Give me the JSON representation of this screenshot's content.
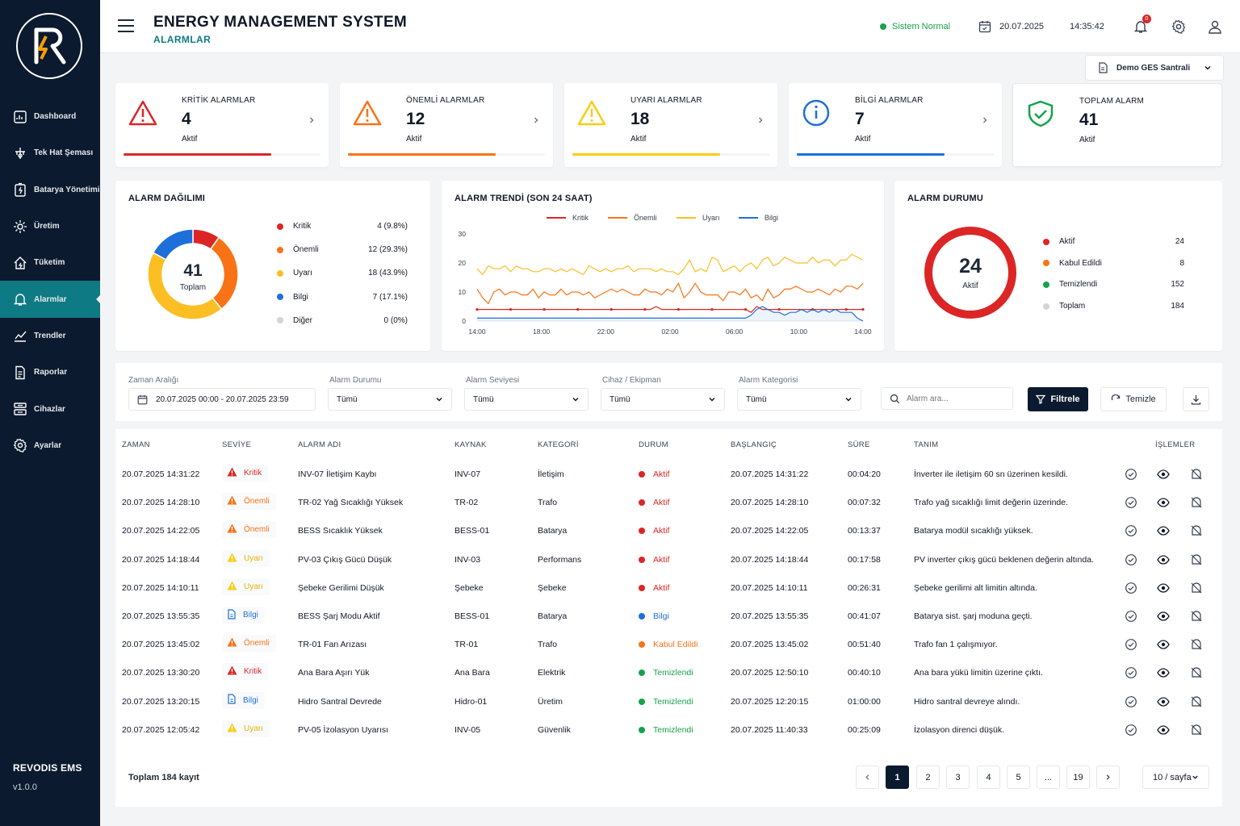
{
  "sidebar": {
    "brand": "REVODIS EMS",
    "version": "v1.0.0",
    "items": [
      {
        "label": "Dashboard",
        "icon": "dashboard-icon"
      },
      {
        "label": "Tek Hat Şeması",
        "icon": "single-line-icon"
      },
      {
        "label": "Batarya Yönetimi",
        "icon": "battery-icon"
      },
      {
        "label": "Üretim",
        "icon": "production-icon"
      },
      {
        "label": "Tüketim",
        "icon": "consumption-icon"
      },
      {
        "label": "Alarmlar",
        "icon": "bell-icon",
        "active": true
      },
      {
        "label": "Trendler",
        "icon": "trend-icon"
      },
      {
        "label": "Raporlar",
        "icon": "report-icon"
      },
      {
        "label": "Cihazlar",
        "icon": "devices-icon"
      },
      {
        "label": "Ayarlar",
        "icon": "settings-icon"
      }
    ]
  },
  "header": {
    "title": "ENERGY MANAGEMENT SYSTEM",
    "subtitle": "ALARMLAR",
    "status": "Sistem Normal",
    "date": "20.07.2025",
    "time": "14:35:42",
    "notif_count": "0",
    "plant": "Demo GES Santrali"
  },
  "kpis": [
    {
      "label": "KRİTİK ALARMLAR",
      "value": "4",
      "sub": "Aktif",
      "color": "#dc2626",
      "fill": 0.75
    },
    {
      "label": "ÖNEMLİ ALARMLAR",
      "value": "12",
      "sub": "Aktif",
      "color": "#f97316",
      "fill": 0.75
    },
    {
      "label": "UYARI ALARMLAR",
      "value": "18",
      "sub": "Aktif",
      "color": "#facc15",
      "fill": 0.75
    },
    {
      "label": "BİLGİ ALARMLAR",
      "value": "7",
      "sub": "Aktif",
      "color": "#1e6fd9",
      "fill": 0.75
    },
    {
      "label": "TOPLAM ALARM",
      "value": "41",
      "sub": "Aktif",
      "color": "#16a34a"
    }
  ],
  "distribution": {
    "title": "ALARM DAĞILIMI",
    "total": "41",
    "total_label": "Toplam",
    "items": [
      {
        "name": "Kritik",
        "text": "4 (9.8%)",
        "value": 4,
        "color": "#dc2626"
      },
      {
        "name": "Önemli",
        "text": "12 (29.3%)",
        "value": 12,
        "color": "#f97316"
      },
      {
        "name": "Uyarı",
        "text": "18 (43.9%)",
        "value": 18,
        "color": "#fbbf24"
      },
      {
        "name": "Bilgi",
        "text": "7 (17.1%)",
        "value": 7,
        "color": "#1e6fd9"
      },
      {
        "name": "Diğer",
        "text": "0 (0%)",
        "value": 0,
        "color": "#d1d5db"
      }
    ]
  },
  "chart_data": {
    "type": "line",
    "title": "ALARM TRENDİ (SON 24 SAAT)",
    "x_ticks": [
      "14:00",
      "18:00",
      "22:00",
      "02:00",
      "06:00",
      "10:00",
      "14:00"
    ],
    "ylim": [
      0,
      30
    ],
    "y_ticks": [
      0,
      10,
      20,
      30
    ],
    "legend": "top",
    "series": [
      {
        "name": "Kritik",
        "color": "#dc2626",
        "values": [
          4,
          4,
          4,
          4,
          4,
          4,
          4,
          4,
          4,
          4,
          4,
          4,
          4,
          4,
          4,
          4,
          4,
          4,
          4,
          4,
          4,
          4,
          4,
          4,
          4,
          4,
          4,
          4,
          4,
          4,
          4,
          4,
          5,
          4,
          4,
          4,
          4,
          4,
          4,
          4,
          4,
          4,
          4,
          4,
          4,
          4,
          4,
          4,
          4,
          3,
          5,
          4,
          4,
          4,
          4,
          4,
          4,
          4,
          4,
          4,
          4,
          4,
          4,
          4,
          4,
          4,
          4,
          4,
          4,
          4
        ]
      },
      {
        "name": "Önemli",
        "color": "#f97316",
        "values": [
          11,
          8,
          6,
          10,
          11,
          9,
          10,
          10,
          9,
          9,
          11,
          8,
          10,
          9,
          9,
          11,
          9,
          10,
          10,
          9,
          10,
          8,
          9,
          10,
          11,
          10,
          11,
          10,
          9,
          9,
          11,
          10,
          10,
          9,
          11,
          10,
          13,
          8,
          10,
          13,
          10,
          9,
          9,
          9,
          7,
          10,
          10,
          9,
          11,
          8,
          9,
          7,
          11,
          8,
          9,
          11,
          11,
          12,
          11,
          10,
          10,
          11,
          10,
          9,
          11,
          10,
          12,
          12,
          11,
          13
        ]
      },
      {
        "name": "Uyarı",
        "color": "#fbbf24",
        "values": [
          18,
          16,
          19,
          18,
          18,
          19,
          17,
          19,
          18,
          18,
          17,
          17,
          18,
          18,
          17,
          18,
          17,
          18,
          17,
          16,
          19,
          18,
          17,
          18,
          17,
          18,
          18,
          19,
          17,
          18,
          18,
          18,
          17,
          18,
          17,
          17,
          16,
          18,
          21,
          17,
          18,
          17,
          22,
          21,
          17,
          18,
          19,
          17,
          19,
          20,
          18,
          21,
          22,
          19,
          20,
          22,
          21,
          20,
          20,
          20,
          22,
          20,
          21,
          21,
          19,
          21,
          21,
          23,
          22,
          21
        ]
      },
      {
        "name": "Bilgi",
        "color": "#1e6fd9",
        "values": [
          1,
          1,
          1,
          1,
          1,
          1,
          1,
          1,
          1,
          1,
          1,
          1,
          1,
          1,
          1,
          1,
          1,
          1,
          1,
          1,
          1,
          1,
          1,
          1,
          1,
          1,
          1,
          1,
          1,
          1,
          1,
          1,
          1,
          1,
          1,
          1,
          1,
          1,
          1,
          1,
          1,
          1,
          1,
          1,
          1,
          1,
          1,
          1,
          1,
          2,
          4,
          5,
          4,
          3,
          3,
          2,
          3,
          3,
          4,
          3,
          4,
          3,
          4,
          3,
          4,
          3,
          3,
          3,
          1,
          0
        ]
      }
    ]
  },
  "status_panel": {
    "title": "ALARM DURUMU",
    "ring_value": "24",
    "ring_label": "Aktif",
    "items": [
      {
        "name": "Aktif",
        "value": "24",
        "color": "#dc2626"
      },
      {
        "name": "Kabul Edildi",
        "value": "8",
        "color": "#f97316"
      },
      {
        "name": "Temizlendi",
        "value": "152",
        "color": "#16a34a"
      },
      {
        "name": "Toplam",
        "value": "184",
        "color": "#d1d5db"
      }
    ]
  },
  "filters": {
    "range_label": "Zaman Aralığı",
    "range_value": "20.07.2025 00:00 - 20.07.2025 23:59",
    "status_label": "Alarm Durumu",
    "status_value": "Tümü",
    "level_label": "Alarm Seviyesi",
    "level_value": "Tümü",
    "device_label": "Cihaz / Ekipman",
    "device_value": "Tümü",
    "category_label": "Alarm Kategorisi",
    "category_value": "Tümü",
    "search_placeholder": "Alarm ara...",
    "filter_btn": "Filtrele",
    "clear_btn": "Temizle"
  },
  "table": {
    "headers": [
      "ZAMAN",
      "SEVİYE",
      "ALARM ADI",
      "KAYNAK",
      "KATEGORİ",
      "DURUM",
      "BAŞLANGIÇ",
      "SÜRE",
      "TANIM",
      "İŞLEMLER"
    ],
    "rows": [
      {
        "time": "20.07.2025 14:31:22",
        "level": "Kritik",
        "name": "INV-07 İletişim Kaybı",
        "source": "INV-07",
        "category": "İletişim",
        "status": "Aktif",
        "start": "20.07.2025 14:31:22",
        "duration": "00:04:20",
        "desc": "İnverter ile iletişim 60 sn üzerinen kesildi."
      },
      {
        "time": "20.07.2025 14:28:10",
        "level": "Önemli",
        "name": "TR-02 Yağ Sıcaklığı Yüksek",
        "source": "TR-02",
        "category": "Trafo",
        "status": "Aktif",
        "start": "20.07.2025 14:28:10",
        "duration": "00:07:32",
        "desc": "Trafo yağ sıcaklığı limit değerin üzerinde."
      },
      {
        "time": "20.07.2025 14:22:05",
        "level": "Önemli",
        "name": "BESS Sıcaklık Yüksek",
        "source": "BESS-01",
        "category": "Batarya",
        "status": "Aktif",
        "start": "20.07.2025 14:22:05",
        "duration": "00:13:37",
        "desc": "Batarya modül sıcaklığı yüksek."
      },
      {
        "time": "20.07.2025 14:18:44",
        "level": "Uyarı",
        "name": "PV-03 Çıkış Gücü Düşük",
        "source": "INV-03",
        "category": "Performans",
        "status": "Aktif",
        "start": "20.07.2025 14:18:44",
        "duration": "00:17:58",
        "desc": "PV inverter çıkış gücü beklenen değerin altında."
      },
      {
        "time": "20.07.2025 14:10:11",
        "level": "Uyarı",
        "name": "Şebeke Gerilimi Düşük",
        "source": "Şebeke",
        "category": "Şebeke",
        "status": "Aktif",
        "start": "20.07.2025 14:10:11",
        "duration": "00:26:31",
        "desc": "Şebeke gerilimi alt limitin altında."
      },
      {
        "time": "20.07.2025 13:55:35",
        "level": "Bilgi",
        "name": "BESS Şarj Modu Aktif",
        "source": "BESS-01",
        "category": "Batarya",
        "status": "Bilgi",
        "start": "20.07.2025 13:55:35",
        "duration": "00:41:07",
        "desc": "Batarya sist. şarj moduna geçti."
      },
      {
        "time": "20.07.2025 13:45:02",
        "level": "Önemli",
        "name": "TR-01 Fan Arızası",
        "source": "TR-01",
        "category": "Trafo",
        "status": "Kabul Edildi",
        "start": "20.07.2025 13:45:02",
        "duration": "00:51:40",
        "desc": "Trafo fan 1 çalışmıyor."
      },
      {
        "time": "20.07.2025 13:30:20",
        "level": "Kritik",
        "name": "Ana Bara Aşırı Yük",
        "source": "Ana Bara",
        "category": "Elektrik",
        "status": "Temizlendi",
        "start": "20.07.2025 12:50:10",
        "duration": "00:40:10",
        "desc": "Ana bara yükü limitin üzerine çıktı."
      },
      {
        "time": "20.07.2025 13:20:15",
        "level": "Bilgi",
        "name": "Hidro Santral Devrede",
        "source": "Hidro-01",
        "category": "Üretim",
        "status": "Temizlendi",
        "start": "20.07.2025 12:20:15",
        "duration": "01:00:00",
        "desc": "Hidro santral devreye alındı."
      },
      {
        "time": "20.07.2025 12:05:42",
        "level": "Uyarı",
        "name": "PV-05 İzolasyon Uyarısı",
        "source": "INV-05",
        "category": "Güvenlik",
        "status": "Temizlendi",
        "start": "20.07.2025 11:40:33",
        "duration": "00:25:09",
        "desc": "İzolasyon direnci düşük."
      }
    ]
  },
  "pagination": {
    "total_text": "Toplam 184 kayıt",
    "pages": [
      "1",
      "2",
      "3",
      "4",
      "5",
      "...",
      "19"
    ],
    "current": "1",
    "per_page": "10 / sayfa"
  }
}
